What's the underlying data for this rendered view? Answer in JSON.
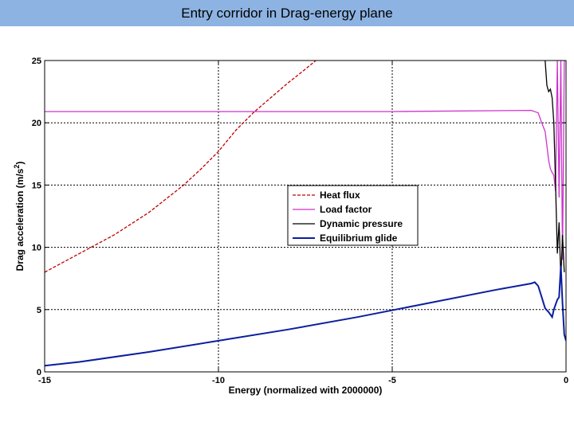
{
  "header": {
    "title": "Entry corridor in Drag-energy plane"
  },
  "colors": {
    "title_bar": "#8db3e2"
  },
  "chart_data": {
    "type": "line",
    "xlabel": "Energy (normalized with 2000000)",
    "ylabel": "Drag acceleration (m/s^2)",
    "ylabel_main": "Drag acceleration (m/s",
    "ylabel_sup": "2",
    "ylabel_end": ")",
    "xlim": [
      -15,
      0
    ],
    "ylim": [
      0,
      25
    ],
    "xticks": [
      -15,
      -10,
      -5,
      0
    ],
    "yticks": [
      0,
      5,
      10,
      15,
      20,
      25
    ],
    "grid": true,
    "legend_position": "center-right",
    "series": [
      {
        "name": "Heat flux",
        "color": "#c00000",
        "style": "dashed",
        "x": [
          -15,
          -14,
          -13,
          -12,
          -11,
          -10.5,
          -10,
          -9.5,
          -9,
          -8.5,
          -8,
          -7.5,
          -7.2
        ],
        "y": [
          8,
          9.5,
          11,
          12.8,
          15,
          16.3,
          17.7,
          19.4,
          20.8,
          22,
          23.2,
          24.3,
          25
        ]
      },
      {
        "name": "Load factor",
        "color": "#cc33cc",
        "style": "solid",
        "x": [
          -15,
          -10,
          -5,
          -1,
          -0.8,
          -0.7,
          -0.6,
          -0.5,
          -0.45,
          -0.4,
          -0.35,
          -0.3,
          -0.25,
          -0.2,
          -0.15,
          -0.1,
          -0.05
        ],
        "y": [
          20.9,
          20.9,
          20.9,
          21,
          20.8,
          20,
          19.3,
          17,
          16.3,
          16,
          15.8,
          14.5,
          25,
          14,
          25,
          9,
          25
        ]
      },
      {
        "name": "Dynamic pressure",
        "color": "#000000",
        "style": "solid",
        "x": [
          -0.6,
          -0.55,
          -0.5,
          -0.45,
          -0.4,
          -0.35,
          -0.3,
          -0.25,
          -0.2,
          -0.15,
          -0.1,
          -0.05
        ],
        "y": [
          25,
          23,
          22.5,
          22.7,
          22,
          20,
          15,
          9.5,
          12,
          7.5,
          11,
          8
        ]
      },
      {
        "name": "Equilibrium glide",
        "color": "#0a1e9e",
        "style": "solid",
        "x": [
          -15,
          -14,
          -12,
          -10,
          -8,
          -6,
          -4,
          -2,
          -1,
          -0.9,
          -0.8,
          -0.7,
          -0.6,
          -0.5,
          -0.45,
          -0.4,
          -0.35,
          -0.3,
          -0.25,
          -0.2,
          -0.15,
          -0.1,
          -0.05,
          0
        ],
        "y": [
          0.5,
          0.8,
          1.6,
          2.5,
          3.4,
          4.4,
          5.5,
          6.6,
          7.1,
          7.2,
          6.9,
          6,
          5.1,
          4.8,
          4.6,
          4.4,
          5,
          5.4,
          5.8,
          6,
          8.5,
          5.5,
          3,
          2.5
        ]
      }
    ]
  }
}
